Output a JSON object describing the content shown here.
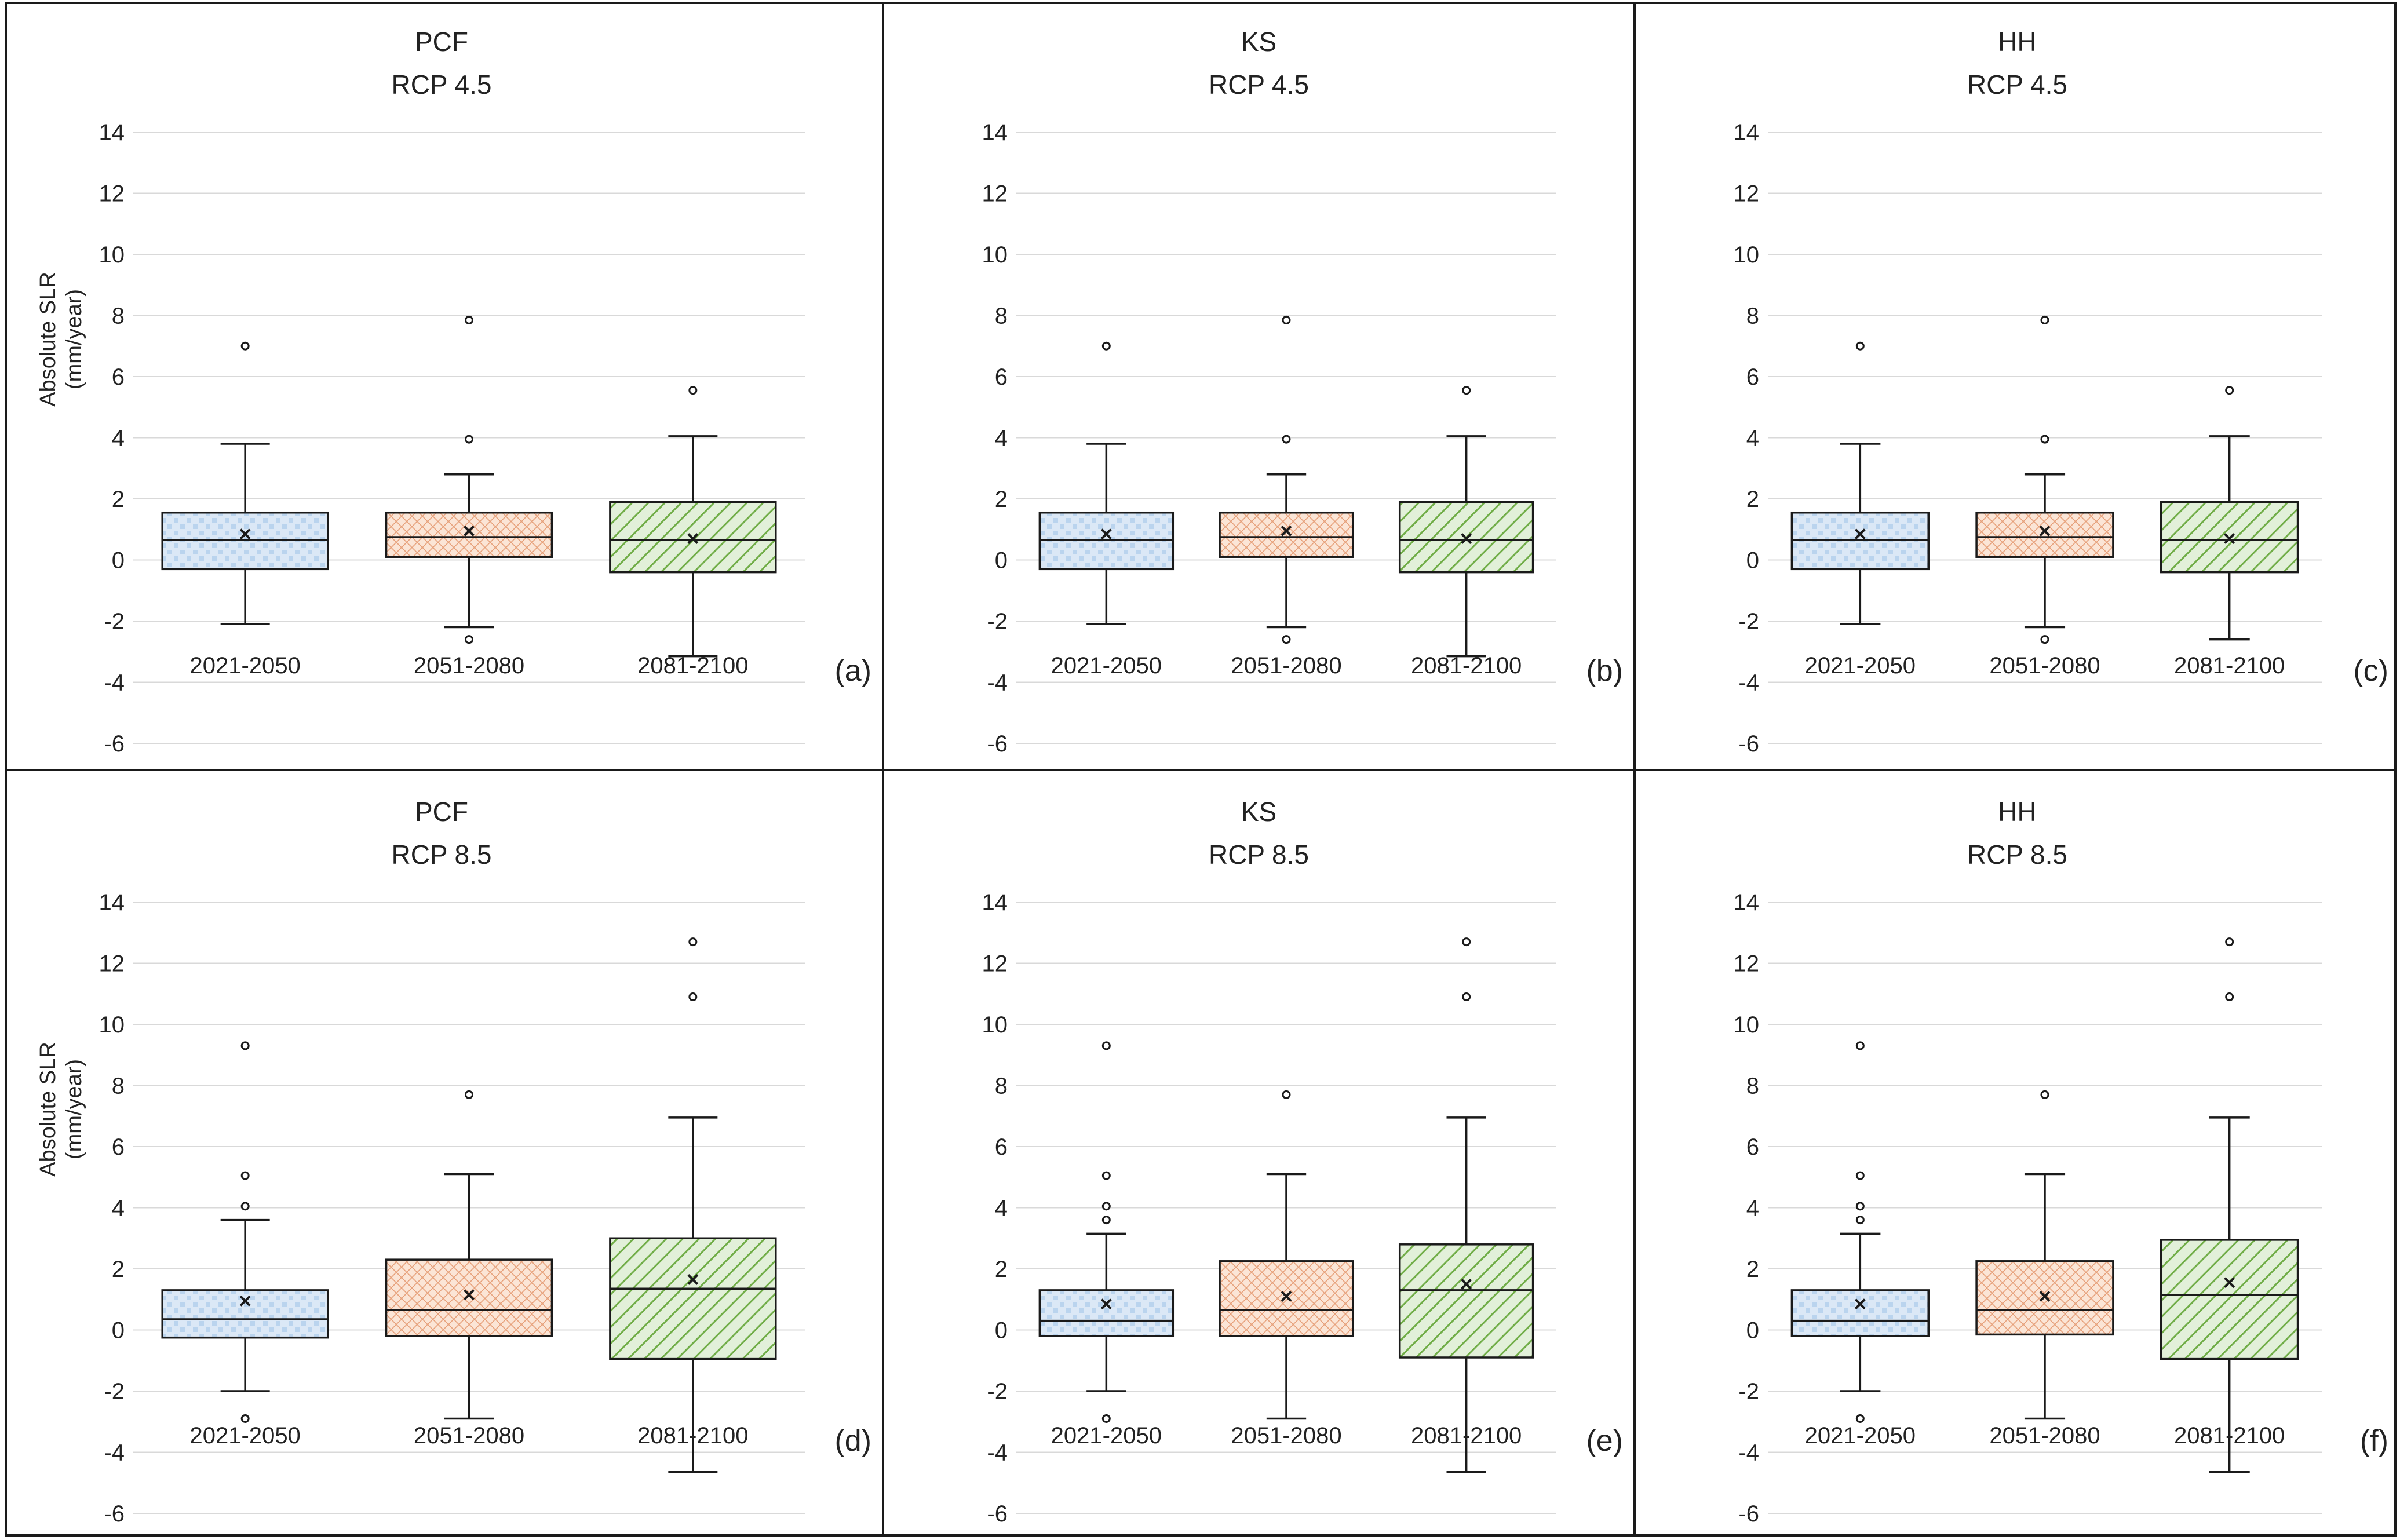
{
  "figure": {
    "border_color": "#1a1a1a",
    "box_stroke": "#1a1a1a",
    "grid_color": "#d9d9d9"
  },
  "period_colors": {
    "2021-2050": {
      "fill": "#dbe8f6",
      "pattern": "dots",
      "pattern_color": "#9ec2e6"
    },
    "2051-2080": {
      "fill": "#fbe5d6",
      "pattern": "crosshatch",
      "pattern_color": "#e6a07a"
    },
    "2081-2100": {
      "fill": "#e2f0d9",
      "pattern": "diagonal",
      "pattern_color": "#70ad47"
    }
  },
  "chart_data": [
    {
      "type": "boxplot",
      "panel": "(a)",
      "model": "PCF",
      "scenario": "RCP 4.5",
      "ylabel_line1": "Absolute SLR",
      "ylabel_line2": "(mm/year)",
      "ylim": [
        -6,
        14
      ],
      "yticks": [
        -6,
        -4,
        -2,
        0,
        2,
        4,
        6,
        8,
        10,
        12,
        14
      ],
      "grid": true,
      "categories": [
        "2021-2050",
        "2051-2080",
        "2081-2100"
      ],
      "boxes": [
        {
          "whisker_low": -2.1,
          "q1": -0.3,
          "median": 0.65,
          "q3": 1.55,
          "whisker_high": 3.8,
          "mean": 0.85,
          "outliers": [
            7.0
          ]
        },
        {
          "whisker_low": -2.2,
          "q1": 0.1,
          "median": 0.75,
          "q3": 1.55,
          "whisker_high": 2.8,
          "mean": 0.95,
          "outliers": [
            7.85,
            3.95,
            -2.6
          ]
        },
        {
          "whisker_low": -3.15,
          "q1": -0.4,
          "median": 0.65,
          "q3": 1.9,
          "whisker_high": 4.05,
          "mean": 0.7,
          "outliers": [
            5.55
          ]
        }
      ]
    },
    {
      "type": "boxplot",
      "panel": "(b)",
      "model": "KS",
      "scenario": "RCP 4.5",
      "ylabel_line1": "",
      "ylabel_line2": "",
      "ylim": [
        -6,
        14
      ],
      "yticks": [
        -6,
        -4,
        -2,
        0,
        2,
        4,
        6,
        8,
        10,
        12,
        14
      ],
      "grid": true,
      "categories": [
        "2021-2050",
        "2051-2080",
        "2081-2100"
      ],
      "boxes": [
        {
          "whisker_low": -2.1,
          "q1": -0.3,
          "median": 0.65,
          "q3": 1.55,
          "whisker_high": 3.8,
          "mean": 0.85,
          "outliers": [
            7.0
          ]
        },
        {
          "whisker_low": -2.2,
          "q1": 0.1,
          "median": 0.75,
          "q3": 1.55,
          "whisker_high": 2.8,
          "mean": 0.95,
          "outliers": [
            7.85,
            3.95,
            -2.6
          ]
        },
        {
          "whisker_low": -3.15,
          "q1": -0.4,
          "median": 0.65,
          "q3": 1.9,
          "whisker_high": 4.05,
          "mean": 0.7,
          "outliers": [
            5.55
          ]
        }
      ]
    },
    {
      "type": "boxplot",
      "panel": "(c)",
      "model": "HH",
      "scenario": "RCP 4.5",
      "ylabel_line1": "",
      "ylabel_line2": "",
      "ylim": [
        -6,
        14
      ],
      "yticks": [
        -6,
        -4,
        -2,
        0,
        2,
        4,
        6,
        8,
        10,
        12,
        14
      ],
      "grid": true,
      "categories": [
        "2021-2050",
        "2051-2080",
        "2081-2100"
      ],
      "boxes": [
        {
          "whisker_low": -2.1,
          "q1": -0.3,
          "median": 0.65,
          "q3": 1.55,
          "whisker_high": 3.8,
          "mean": 0.85,
          "outliers": [
            7.0
          ]
        },
        {
          "whisker_low": -2.2,
          "q1": 0.1,
          "median": 0.75,
          "q3": 1.55,
          "whisker_high": 2.8,
          "mean": 0.95,
          "outliers": [
            7.85,
            3.95,
            -2.6
          ]
        },
        {
          "whisker_low": -2.6,
          "q1": -0.4,
          "median": 0.65,
          "q3": 1.9,
          "whisker_high": 4.05,
          "mean": 0.7,
          "outliers": [
            5.55
          ]
        }
      ]
    },
    {
      "type": "boxplot",
      "panel": "(d)",
      "model": "PCF",
      "scenario": "RCP 8.5",
      "ylabel_line1": "Absolute SLR",
      "ylabel_line2": "(mm/year)",
      "ylim": [
        -6,
        14
      ],
      "yticks": [
        -6,
        -4,
        -2,
        0,
        2,
        4,
        6,
        8,
        10,
        12,
        14
      ],
      "grid": true,
      "categories": [
        "2021-2050",
        "2051-2080",
        "2081-2100"
      ],
      "boxes": [
        {
          "whisker_low": -2.0,
          "q1": -0.25,
          "median": 0.35,
          "q3": 1.3,
          "whisker_high": 3.6,
          "mean": 0.95,
          "outliers": [
            9.3,
            5.05,
            4.05,
            -2.9
          ]
        },
        {
          "whisker_low": -2.9,
          "q1": -0.2,
          "median": 0.65,
          "q3": 2.3,
          "whisker_high": 5.1,
          "mean": 1.15,
          "outliers": [
            7.7
          ]
        },
        {
          "whisker_low": -4.65,
          "q1": -0.95,
          "median": 1.35,
          "q3": 3.0,
          "whisker_high": 6.95,
          "mean": 1.65,
          "outliers": [
            12.7,
            10.9
          ]
        }
      ]
    },
    {
      "type": "boxplot",
      "panel": "(e)",
      "model": "KS",
      "scenario": "RCP 8.5",
      "ylabel_line1": "",
      "ylabel_line2": "",
      "ylim": [
        -6,
        14
      ],
      "yticks": [
        -6,
        -4,
        -2,
        0,
        2,
        4,
        6,
        8,
        10,
        12,
        14
      ],
      "grid": true,
      "categories": [
        "2021-2050",
        "2051-2080",
        "2081-2100"
      ],
      "boxes": [
        {
          "whisker_low": -2.0,
          "q1": -0.2,
          "median": 0.3,
          "q3": 1.3,
          "whisker_high": 3.15,
          "mean": 0.85,
          "outliers": [
            9.3,
            5.05,
            4.05,
            3.6,
            -2.9
          ]
        },
        {
          "whisker_low": -2.9,
          "q1": -0.2,
          "median": 0.65,
          "q3": 2.25,
          "whisker_high": 5.1,
          "mean": 1.1,
          "outliers": [
            7.7
          ]
        },
        {
          "whisker_low": -4.65,
          "q1": -0.9,
          "median": 1.3,
          "q3": 2.8,
          "whisker_high": 6.95,
          "mean": 1.5,
          "outliers": [
            12.7,
            10.9
          ]
        }
      ]
    },
    {
      "type": "boxplot",
      "panel": "(f)",
      "model": "HH",
      "scenario": "RCP 8.5",
      "ylabel_line1": "",
      "ylabel_line2": "",
      "ylim": [
        -6,
        14
      ],
      "yticks": [
        -6,
        -4,
        -2,
        0,
        2,
        4,
        6,
        8,
        10,
        12,
        14
      ],
      "grid": true,
      "categories": [
        "2021-2050",
        "2051-2080",
        "2081-2100"
      ],
      "boxes": [
        {
          "whisker_low": -2.0,
          "q1": -0.2,
          "median": 0.3,
          "q3": 1.3,
          "whisker_high": 3.15,
          "mean": 0.85,
          "outliers": [
            9.3,
            5.05,
            4.05,
            3.6,
            -2.9
          ]
        },
        {
          "whisker_low": -2.9,
          "q1": -0.15,
          "median": 0.65,
          "q3": 2.25,
          "whisker_high": 5.1,
          "mean": 1.1,
          "outliers": [
            7.7
          ]
        },
        {
          "whisker_low": -4.65,
          "q1": -0.95,
          "median": 1.15,
          "q3": 2.95,
          "whisker_high": 6.95,
          "mean": 1.55,
          "outliers": [
            12.7,
            10.9
          ]
        }
      ]
    }
  ]
}
